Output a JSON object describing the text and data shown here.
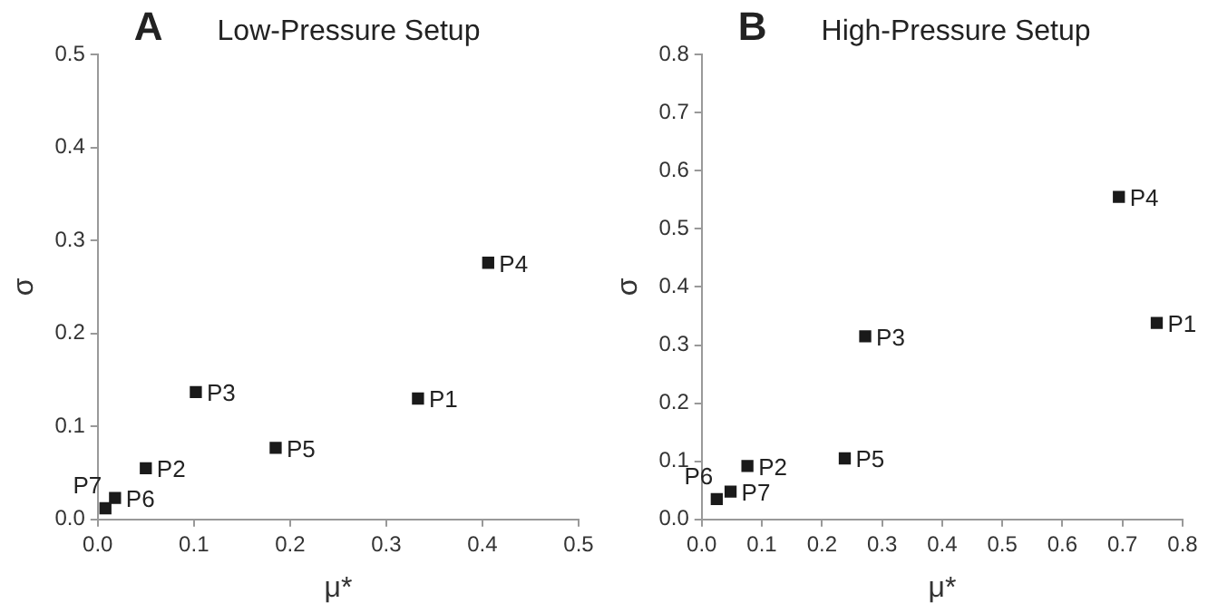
{
  "chart_data": [
    {
      "type": "scatter",
      "title": "Low-Pressure Setup",
      "xlabel": "μ*",
      "ylabel": "σ",
      "marker": "square",
      "legend": false,
      "x": [
        0.333,
        0.05,
        0.102,
        0.406,
        0.185,
        0.018,
        0.008
      ],
      "series": [
        {
          "color": "#1a1a1a",
          "values": [
            0.13,
            0.055,
            0.137,
            0.276,
            0.077,
            0.023,
            0.012
          ]
        }
      ],
      "xlim": [
        0,
        0.5
      ],
      "xticks": [
        {
          "value": 0,
          "label": "0.0"
        },
        0.1,
        0.2,
        0.3,
        0.4,
        0.5
      ],
      "ylim": [
        0,
        0.5
      ],
      "yticks": [
        {
          "value": 0,
          "label": "0.0"
        },
        0.1,
        0.2,
        0.3,
        0.4,
        0.5
      ],
      "annotations": [
        "A",
        {
          "text": "P1",
          "x": 0.333,
          "y": 0.13
        },
        {
          "text": "P2",
          "x": 0.05,
          "y": 0.055
        },
        {
          "text": "P3",
          "x": 0.102,
          "y": 0.137
        },
        {
          "text": "P4",
          "x": 0.406,
          "y": 0.276
        },
        {
          "text": "P5",
          "x": 0.185,
          "y": 0.077
        },
        {
          "text": "P6",
          "x": 0.018,
          "y": 0.023
        },
        {
          "text": "P7",
          "x": 0.008,
          "y": 0.012
        }
      ]
    },
    {
      "type": "scatter",
      "title": "High-Pressure Setup",
      "xlabel": "μ*",
      "ylabel": "σ",
      "marker": "square",
      "legend": false,
      "x": [
        0.757,
        0.076,
        0.272,
        0.694,
        0.238,
        0.025,
        0.048
      ],
      "series": [
        {
          "color": "#1a1a1a",
          "values": [
            0.338,
            0.092,
            0.315,
            0.555,
            0.105,
            0.035,
            0.048
          ]
        }
      ],
      "xlim": [
        0,
        0.8
      ],
      "xticks": [
        {
          "value": 0,
          "label": "0.0"
        },
        0.1,
        0.2,
        0.3,
        0.4,
        0.5,
        0.6,
        0.7,
        0.8
      ],
      "ylim": [
        0,
        0.8
      ],
      "yticks": [
        {
          "value": 0,
          "label": "0.0"
        },
        0.1,
        0.2,
        0.3,
        0.4,
        0.5,
        0.6,
        0.7,
        0.8
      ],
      "annotations": [
        "B",
        {
          "text": "P1",
          "x": 0.757,
          "y": 0.338
        },
        {
          "text": "P2",
          "x": 0.076,
          "y": 0.092
        },
        {
          "text": "P3",
          "x": 0.272,
          "y": 0.315
        },
        {
          "text": "P4",
          "x": 0.694,
          "y": 0.555
        },
        {
          "text": "P5",
          "x": 0.238,
          "y": 0.105
        },
        {
          "text": "P7",
          "x": 0.048,
          "y": 0.048
        },
        {
          "text": "P6",
          "x": 0.025,
          "y": 0.035
        }
      ]
    }
  ]
}
